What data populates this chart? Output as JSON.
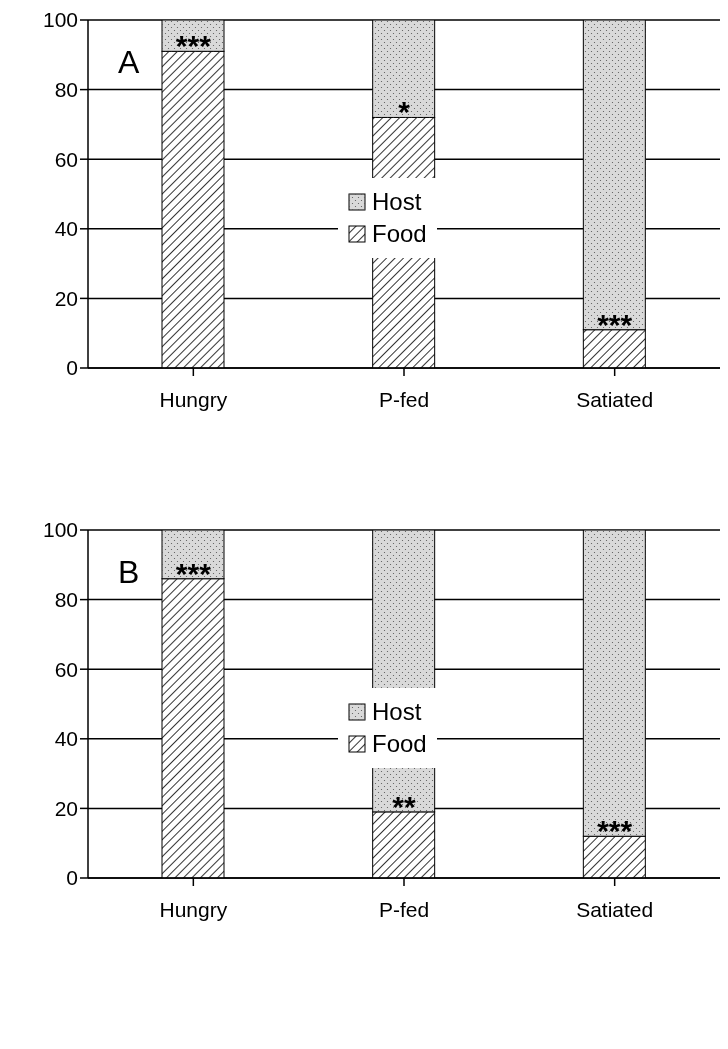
{
  "chart_data": [
    {
      "type": "bar",
      "title": "A",
      "categories": [
        "Hungry",
        "P-fed",
        "Satiated"
      ],
      "stacked": true,
      "series": [
        {
          "name": "Food",
          "color": "#ffffff",
          "values": [
            91,
            72,
            11
          ]
        },
        {
          "name": "Host",
          "color": "#d9d9d9",
          "values": [
            9,
            28,
            89
          ]
        }
      ],
      "ylim": [
        0,
        100
      ],
      "yticks": [
        0,
        20,
        40,
        60,
        80,
        100
      ],
      "grid": "y",
      "legend": "center",
      "annotations": [
        "***",
        "*",
        "***"
      ]
    },
    {
      "type": "bar",
      "title": "B",
      "categories": [
        "Hungry",
        "P-fed",
        "Satiated"
      ],
      "stacked": true,
      "series": [
        {
          "name": "Food",
          "color": "#ffffff",
          "values": [
            86,
            19,
            12
          ]
        },
        {
          "name": "Host",
          "color": "#d9d9d9",
          "values": [
            14,
            81,
            88
          ]
        }
      ],
      "ylim": [
        0,
        100
      ],
      "yticks": [
        0,
        20,
        40,
        60,
        80,
        100
      ],
      "grid": "y",
      "legend": "center",
      "annotations": [
        "***",
        "**",
        "***"
      ]
    }
  ]
}
